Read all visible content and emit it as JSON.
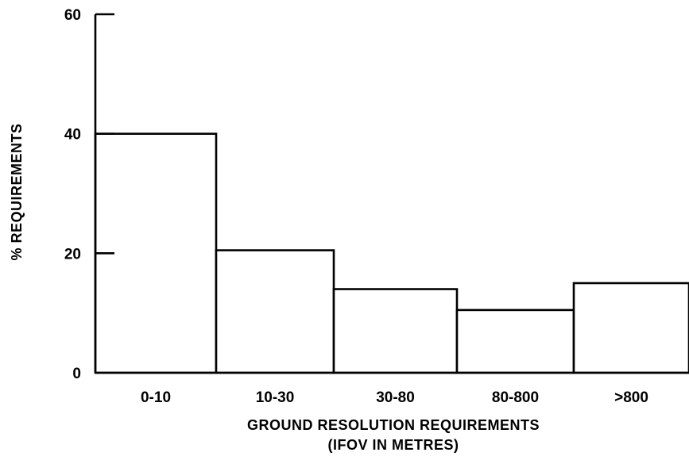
{
  "chart_data": {
    "type": "bar",
    "title": "",
    "xlabel": [
      "GROUND RESOLUTION REQUIREMENTS",
      "(IFOV IN METRES)"
    ],
    "ylabel": "% REQUIREMENTS",
    "categories": [
      "0-10",
      "10-30",
      "30-80",
      "80-800",
      ">800"
    ],
    "values": [
      40,
      20.5,
      14,
      10.5,
      15
    ],
    "yticks": [
      0,
      20,
      40,
      60
    ],
    "ylim": [
      0,
      60
    ],
    "grid": false,
    "legend": "none",
    "colors": {
      "bar_fill": "#ffffff",
      "outline": "#000000"
    }
  }
}
